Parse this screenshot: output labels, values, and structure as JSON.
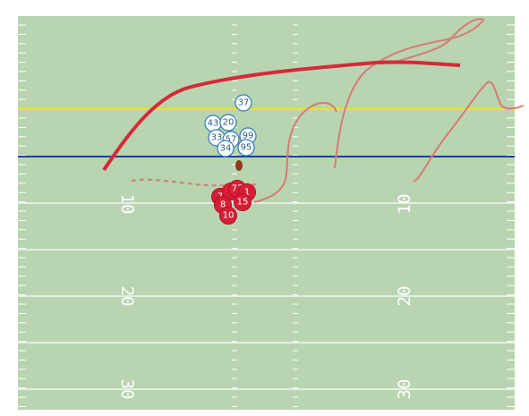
{
  "yard_numbers": [
    "10",
    "20",
    "30"
  ],
  "defense_players": [
    "37",
    "43",
    "20",
    "33",
    "57",
    "99",
    "95",
    "34"
  ],
  "offense_players": [
    "7",
    "6",
    "77",
    "1",
    "8",
    "15",
    "10"
  ]
}
